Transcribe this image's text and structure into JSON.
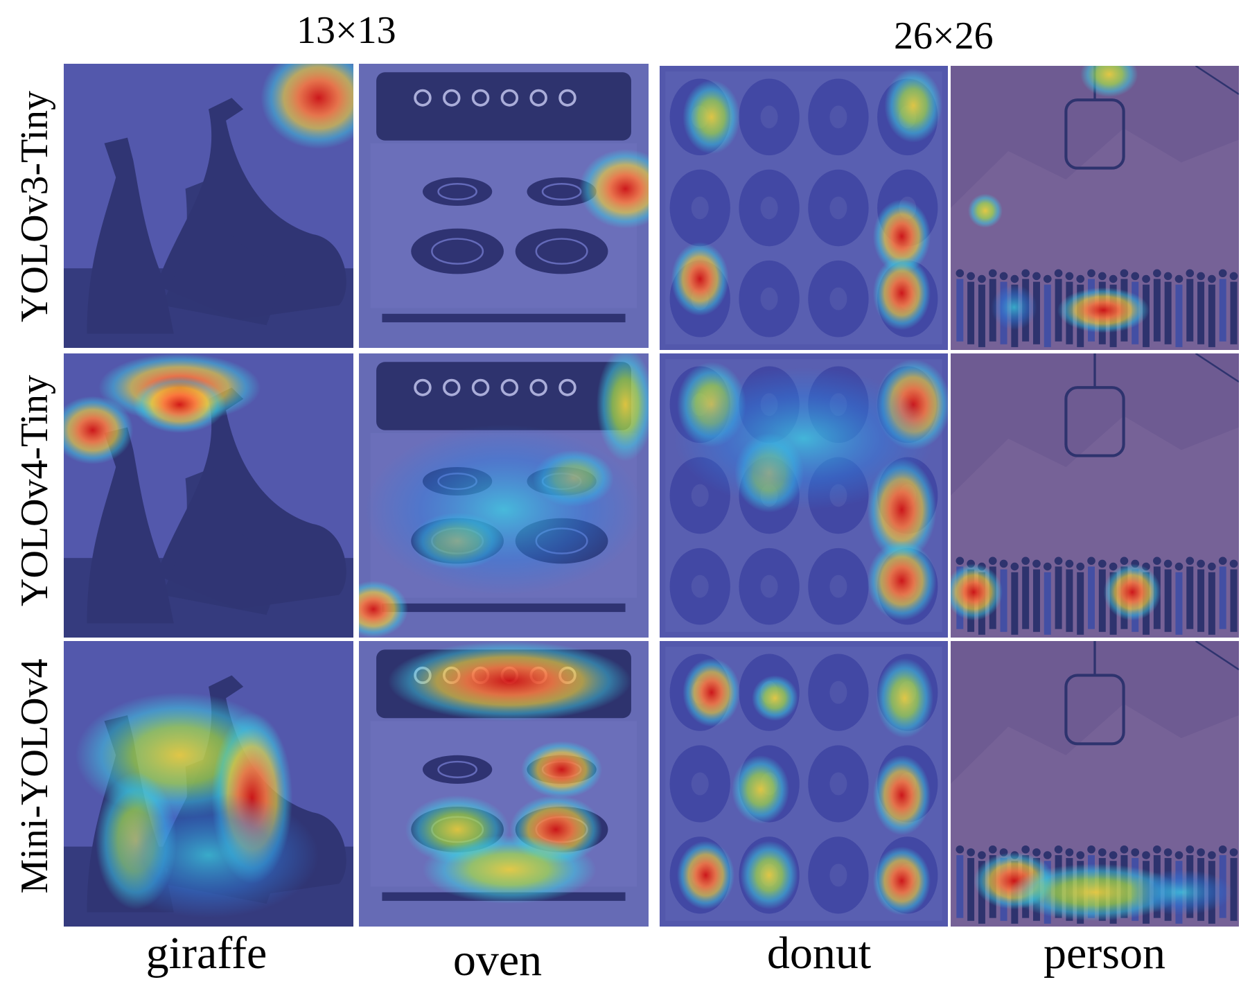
{
  "figure": {
    "scale_headers": [
      "13×13",
      "26×26"
    ],
    "rows": [
      "YOLOv3-Tiny",
      "YOLOv4-Tiny",
      "Mini-YOLOv4"
    ],
    "columns": [
      "giraffe",
      "oven",
      "donut",
      "person"
    ],
    "colors": {
      "overlay_base": "#5358ad",
      "heat_hot": "#d21414",
      "heat_warm": "#f0d23c",
      "heat_cool": "#3cd2e6"
    }
  }
}
